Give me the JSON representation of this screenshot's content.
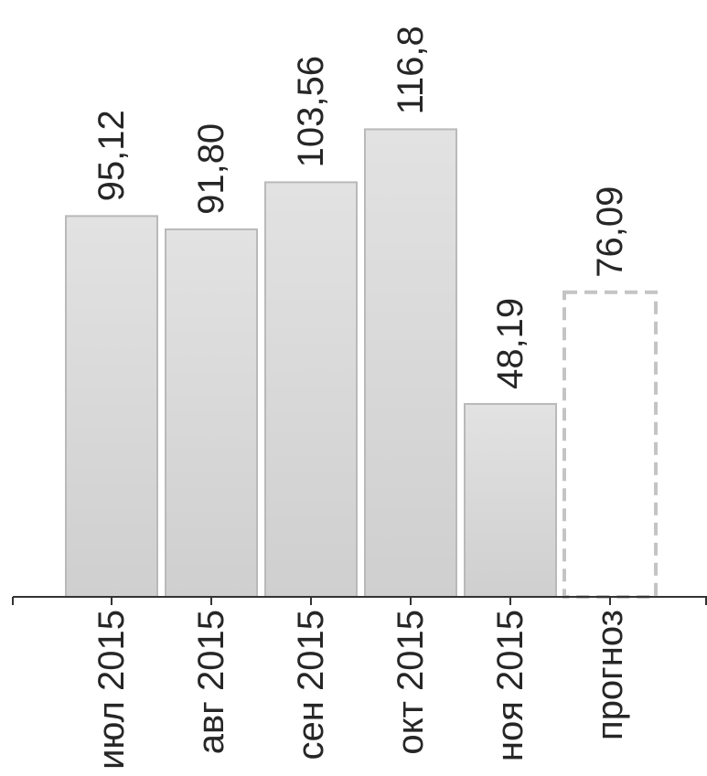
{
  "chart_data": {
    "type": "bar",
    "categories": [
      "июл 2015",
      "авг 2015",
      "сен 2015",
      "окт 2015",
      "ноя 2015",
      "прогноз"
    ],
    "values": [
      95.12,
      91.8,
      103.56,
      116.8,
      48.19,
      76.09
    ],
    "value_labels": [
      "95,12",
      "91,80",
      "103,56",
      "116,8",
      "48,19",
      "76,09"
    ],
    "forecast_index": 5,
    "title": "",
    "xlabel": "",
    "ylabel": "",
    "grid": false,
    "colors": {
      "bar_fill_top": "#e2e2e2",
      "bar_fill_bottom": "#cfcfcf",
      "bar_stroke": "#b9b9b9",
      "forecast_fill": "#ffffff",
      "forecast_stroke": "#c4c4c4",
      "axis": "#333333",
      "text": "#262626"
    }
  }
}
